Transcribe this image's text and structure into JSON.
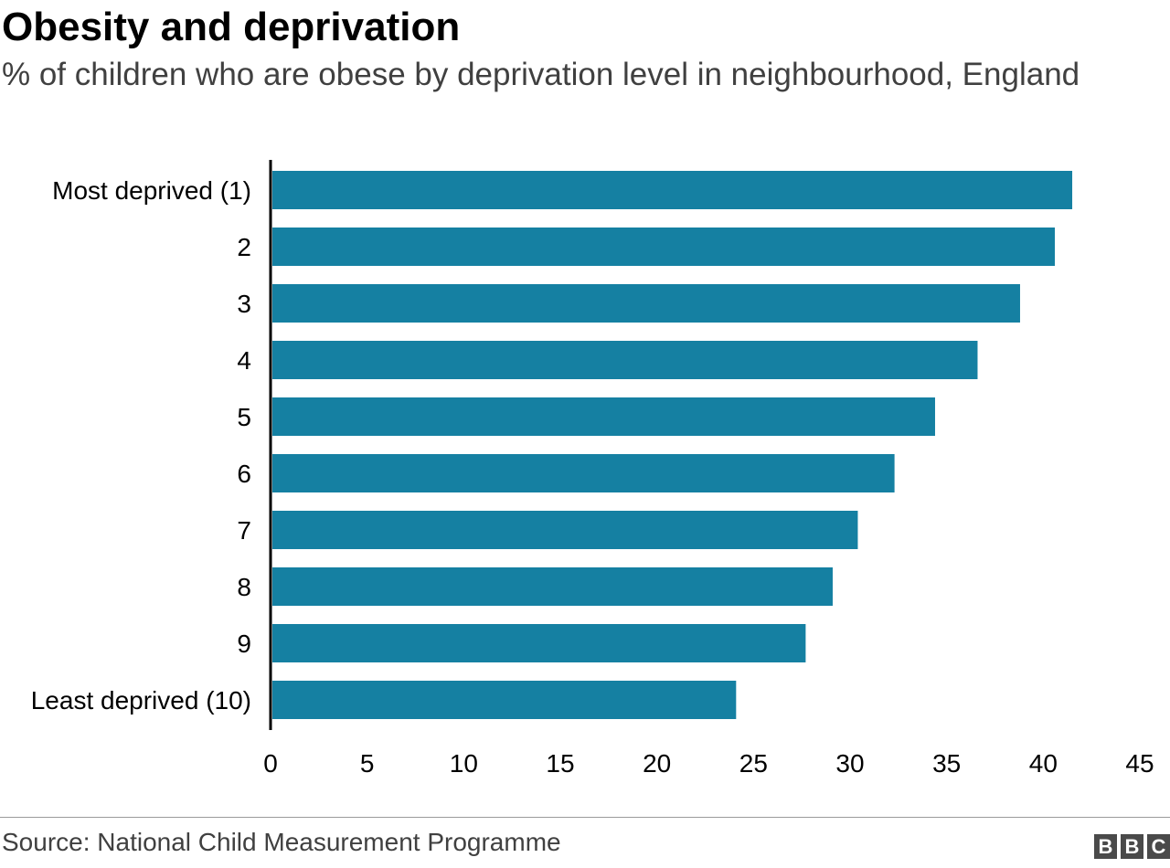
{
  "header": {
    "title": "Obesity and deprivation",
    "subtitle": "% of children who are obese by deprivation level in neighbourhood, England"
  },
  "footer": {
    "source": "Source: National Child Measurement Programme",
    "logo_letters": [
      "B",
      "B",
      "C"
    ]
  },
  "colors": {
    "bar": "#1580a2",
    "axis": "#000000",
    "text": "#000000",
    "subtext": "#404040"
  },
  "chart_data": {
    "type": "bar",
    "orientation": "horizontal",
    "title": "Obesity and deprivation",
    "subtitle": "% of children who are obese by deprivation level in neighbourhood, England",
    "categories": [
      "Most deprived (1)",
      "2",
      "3",
      "4",
      "5",
      "6",
      "7",
      "8",
      "9",
      "Least deprived (10)"
    ],
    "values": [
      41.5,
      40.6,
      38.8,
      36.6,
      34.4,
      32.3,
      30.4,
      29.1,
      27.7,
      24.1
    ],
    "xlim": [
      0,
      45
    ],
    "xticks": [
      0,
      5,
      10,
      15,
      20,
      25,
      30,
      35,
      40,
      45
    ],
    "grid": false,
    "legend": "none"
  }
}
